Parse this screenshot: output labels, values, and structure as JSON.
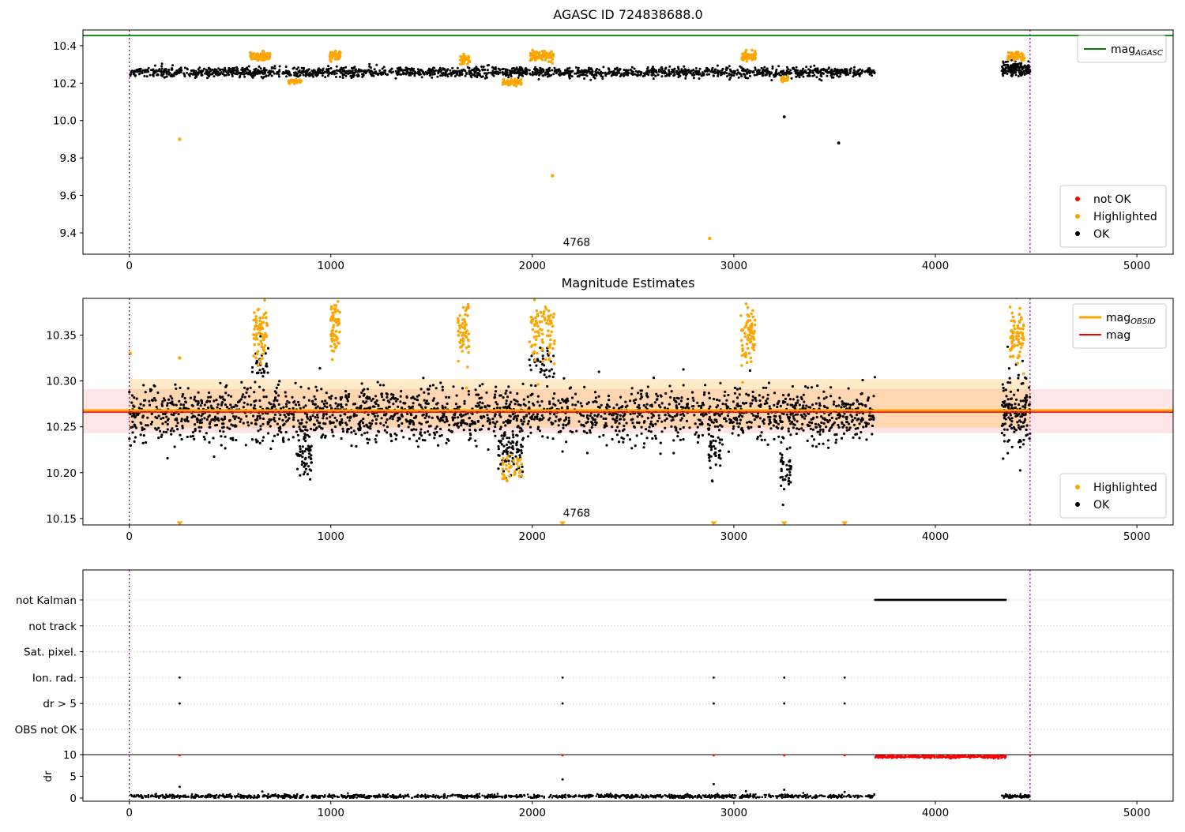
{
  "colors": {
    "ok": "#000000",
    "highlighted": "#ffa500",
    "not_ok": "#ff0000",
    "mag_agasc": "#008000",
    "mag": "#ff0000",
    "mag_obsid": "#ffa500",
    "vline": "#800080",
    "grid": "#c8c8c8"
  },
  "chart_data": [
    {
      "type": "scatter",
      "name": "top-chart",
      "title": "AGASC ID 724838688.0",
      "xlim": [
        -230,
        5180
      ],
      "ylim": [
        9.286,
        10.484
      ],
      "xticks": [
        0,
        1000,
        2000,
        3000,
        4000,
        5000
      ],
      "xtick_labels": [
        "0",
        "1000",
        "2000",
        "3000",
        "4000",
        "5000"
      ],
      "yticks": [
        9.4,
        9.6,
        9.8,
        10.0,
        10.2,
        10.4
      ],
      "ytick_labels": [
        "9.4",
        "9.6",
        "9.8",
        "10.0",
        "10.2",
        "10.4"
      ],
      "vlines": [
        0,
        4470
      ],
      "hlines": [
        {
          "y": 10.455,
          "color": "#008000",
          "width": 1.8,
          "name": "mag-agasc-line"
        }
      ],
      "annotation": {
        "text": "4768",
        "x": 2220,
        "y": 9.33
      },
      "series": [
        {
          "name": "OK",
          "color": "#000000",
          "size": 1.5,
          "clusters": [
            {
              "x0": 0,
              "x1": 3700,
              "n": 1900,
              "y": 10.258,
              "spread": 0.013,
              "seed": 11
            },
            {
              "x0": 4330,
              "x1": 4470,
              "n": 160,
              "y": 10.275,
              "spread": 0.02,
              "seed": 12
            }
          ],
          "points": [
            [
              3250,
              10.02
            ],
            [
              3520,
              9.88
            ]
          ]
        },
        {
          "name": "Highlighted",
          "color": "#ffa500",
          "size": 1.8,
          "clusters": [
            {
              "x0": 600,
              "x1": 700,
              "n": 70,
              "y": 10.345,
              "spread": 0.012,
              "seed": 21
            },
            {
              "x0": 790,
              "x1": 860,
              "n": 28,
              "y": 10.21,
              "spread": 0.009,
              "seed": 22
            },
            {
              "x0": 995,
              "x1": 1050,
              "n": 45,
              "y": 10.345,
              "spread": 0.013,
              "seed": 23
            },
            {
              "x0": 1640,
              "x1": 1695,
              "n": 38,
              "y": 10.33,
              "spread": 0.013,
              "seed": 24
            },
            {
              "x0": 1850,
              "x1": 1950,
              "n": 55,
              "y": 10.205,
              "spread": 0.009,
              "seed": 25
            },
            {
              "x0": 1990,
              "x1": 2105,
              "n": 80,
              "y": 10.345,
              "spread": 0.013,
              "seed": 26
            },
            {
              "x0": 3040,
              "x1": 3110,
              "n": 65,
              "y": 10.345,
              "spread": 0.013,
              "seed": 27
            },
            {
              "x0": 3230,
              "x1": 3272,
              "n": 16,
              "y": 10.22,
              "spread": 0.01,
              "seed": 28
            },
            {
              "x0": 4360,
              "x1": 4442,
              "n": 55,
              "y": 10.345,
              "spread": 0.013,
              "seed": 29
            }
          ],
          "points": [
            [
              250,
              9.9
            ],
            [
              2100,
              9.705
            ],
            [
              2880,
              9.37
            ]
          ]
        },
        {
          "name": "not OK",
          "color": "#ff0000",
          "size": 1.8,
          "clusters": [],
          "points": []
        }
      ],
      "legends": [
        {
          "anchor": "top-right",
          "w": 112,
          "entries": [
            {
              "glyph": "line",
              "color": "#008000",
              "lw": 2,
              "label": "mag",
              "sub": "AGASC"
            }
          ]
        },
        {
          "anchor": "bottom-right",
          "w": 134,
          "entries": [
            {
              "glyph": "dot",
              "color": "#ff0000",
              "label": "not OK"
            },
            {
              "glyph": "dot",
              "color": "#ffa500",
              "label": "Highlighted"
            },
            {
              "glyph": "dot",
              "color": "#000000",
              "label": "OK"
            }
          ]
        }
      ]
    },
    {
      "type": "scatter",
      "name": "middle-chart",
      "title": "Magnitude Estimates",
      "xlim": [
        -230,
        5180
      ],
      "ylim": [
        10.143,
        10.39
      ],
      "xticks": [
        0,
        1000,
        2000,
        3000,
        4000,
        5000
      ],
      "xtick_labels": [
        "0",
        "1000",
        "2000",
        "3000",
        "4000",
        "5000"
      ],
      "yticks": [
        10.15,
        10.2,
        10.25,
        10.3,
        10.35
      ],
      "ytick_labels": [
        "10.15",
        "10.20",
        "10.25",
        "10.30",
        "10.35"
      ],
      "vlines": [
        0,
        4470
      ],
      "bands": [
        {
          "y0": 10.243,
          "y1": 10.291,
          "color": "rgba(255,0,0,0.10)",
          "xfull": true
        },
        {
          "y0": 10.249,
          "y1": 10.302,
          "color": "rgba(255,165,0,0.22)",
          "x0": 0,
          "x1": 4470
        }
      ],
      "hlines": [
        {
          "y": 10.268,
          "color": "#ffa500",
          "width": 2.6,
          "name": "mag-obsid-line"
        },
        {
          "y": 10.266,
          "color": "#ff0000",
          "width": 1.6,
          "name": "mag-line"
        }
      ],
      "annotation": {
        "text": "4768",
        "x": 2220,
        "y": 10.152
      },
      "series": [
        {
          "name": "OK",
          "color": "#000000",
          "size": 1.6,
          "clusters": [
            {
              "x0": 0,
              "x1": 3700,
              "n": 2200,
              "y": 10.264,
              "spread": 0.015,
              "seed": 31
            },
            {
              "x0": 4330,
              "x1": 4470,
              "n": 150,
              "y": 10.268,
              "spread": 0.022,
              "seed": 32
            },
            {
              "x0": 830,
              "x1": 905,
              "n": 55,
              "y": 10.215,
              "spread": 0.012,
              "seed": 33
            },
            {
              "x0": 1830,
              "x1": 1955,
              "n": 75,
              "y": 10.222,
              "spread": 0.012,
              "seed": 34
            },
            {
              "x0": 2875,
              "x1": 2935,
              "n": 40,
              "y": 10.222,
              "spread": 0.012,
              "seed": 35
            },
            {
              "x0": 3230,
              "x1": 3285,
              "n": 42,
              "y": 10.205,
              "spread": 0.013,
              "seed": 36
            },
            {
              "x0": 610,
              "x1": 690,
              "n": 30,
              "y": 10.315,
              "spread": 0.01,
              "seed": 37
            },
            {
              "x0": 1985,
              "x1": 2110,
              "n": 35,
              "y": 10.315,
              "spread": 0.01,
              "seed": 38
            }
          ],
          "points": []
        },
        {
          "name": "Highlighted",
          "color": "#ffa500",
          "size": 1.8,
          "clusters": [
            {
              "x0": 615,
              "x1": 685,
              "n": 75,
              "y": 10.352,
              "spread": 0.017,
              "seed": 41
            },
            {
              "x0": 1000,
              "x1": 1045,
              "n": 60,
              "y": 10.356,
              "spread": 0.017,
              "seed": 42
            },
            {
              "x0": 1630,
              "x1": 1685,
              "n": 55,
              "y": 10.35,
              "spread": 0.016,
              "seed": 43
            },
            {
              "x0": 1985,
              "x1": 2110,
              "n": 95,
              "y": 10.356,
              "spread": 0.018,
              "seed": 44
            },
            {
              "x0": 1850,
              "x1": 1950,
              "n": 40,
              "y": 10.205,
              "spread": 0.008,
              "seed": 45
            },
            {
              "x0": 3035,
              "x1": 3105,
              "n": 75,
              "y": 10.35,
              "spread": 0.016,
              "seed": 46
            },
            {
              "x0": 4370,
              "x1": 4440,
              "n": 75,
              "y": 10.35,
              "spread": 0.017,
              "seed": 47
            }
          ],
          "points": [
            [
              5,
              10.33
            ],
            [
              250,
              10.325
            ]
          ],
          "tri_points": [
            [
              250,
              10.146
            ],
            [
              2150,
              10.146
            ],
            [
              2900,
              10.146
            ],
            [
              3250,
              10.146
            ],
            [
              3550,
              10.146
            ]
          ]
        }
      ],
      "legends": [
        {
          "anchor": "top-right",
          "w": 118,
          "entries": [
            {
              "glyph": "line",
              "color": "#ffa500",
              "lw": 3,
              "label": "mag",
              "sub": "OBSID"
            },
            {
              "glyph": "line",
              "color": "#ff0000",
              "lw": 2,
              "label": "mag"
            }
          ]
        },
        {
          "anchor": "bottom-right",
          "w": 134,
          "entries": [
            {
              "glyph": "dot",
              "color": "#ffa500",
              "label": "Highlighted"
            },
            {
              "glyph": "dot",
              "color": "#000000",
              "label": "OK"
            }
          ]
        }
      ]
    },
    {
      "type": "flags",
      "name": "bottom-chart",
      "xlim": [
        -230,
        5180
      ],
      "xticks": [
        0,
        1000,
        2000,
        3000,
        4000,
        5000
      ],
      "xtick_labels": [
        "0",
        "1000",
        "2000",
        "3000",
        "4000",
        "5000"
      ],
      "categories": [
        "not Kalman",
        "not track",
        "Sat. pixel.",
        "Ion. rad.",
        "dr > 5",
        "OBS not OK"
      ],
      "dr_ticks": [
        0,
        5,
        10
      ],
      "dr_label": "dr",
      "hline_dr": 10,
      "vlines": [
        0,
        4470
      ],
      "flag_data": [
        {
          "row": "not Kalman",
          "segments": [
            {
              "x0": 3700,
              "x1": 4350,
              "n": 420,
              "seed": 51
            }
          ],
          "xs": []
        },
        {
          "row": "not track",
          "segments": [],
          "xs": []
        },
        {
          "row": "Sat. pixel.",
          "segments": [],
          "xs": []
        },
        {
          "row": "Ion. rad.",
          "segments": [],
          "xs": [
            250,
            2150,
            2900,
            3250,
            3550
          ]
        },
        {
          "row": "dr > 5",
          "segments": [],
          "xs": [
            250,
            2150,
            2900,
            3250,
            3550
          ]
        },
        {
          "row": "OBS not OK",
          "segments": [],
          "xs": []
        }
      ],
      "dr_series": [
        {
          "name": "dr-ok",
          "color": "#000000",
          "clusters": [
            {
              "x0": 0,
              "x1": 3700,
              "n": 1300,
              "y": 0.4,
              "spread": 0.22,
              "seed": 61,
              "min": 0.05,
              "max": 1.3
            },
            {
              "x0": 4330,
              "x1": 4470,
              "n": 90,
              "y": 0.4,
              "spread": 0.22,
              "seed": 62,
              "min": 0.05,
              "max": 1.3
            }
          ],
          "points": [
            [
              250,
              2.6
            ],
            [
              660,
              1.5
            ],
            [
              2150,
              4.3
            ],
            [
              2900,
              3.2
            ],
            [
              3060,
              1.6
            ],
            [
              3250,
              1.9
            ],
            [
              3550,
              1.4
            ]
          ]
        },
        {
          "name": "dr-flagged",
          "color": "#ff0000",
          "clusters": [
            {
              "x0": 3700,
              "x1": 4350,
              "n": 430,
              "y": 9.55,
              "spread": 0.16,
              "seed": 63,
              "min": 9.1,
              "max": 9.95
            }
          ],
          "points": [
            [
              250,
              9.85
            ],
            [
              2150,
              9.85
            ],
            [
              2900,
              9.85
            ],
            [
              3250,
              9.85
            ],
            [
              3550,
              9.85
            ],
            [
              4470,
              9.85
            ]
          ]
        }
      ]
    }
  ]
}
